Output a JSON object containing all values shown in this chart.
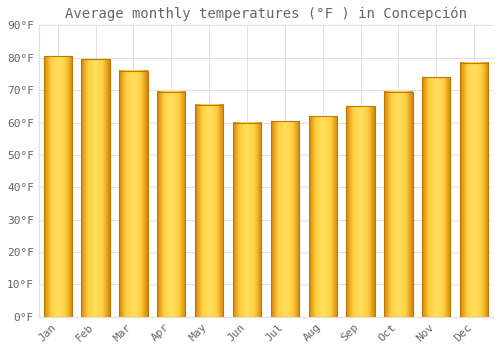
{
  "title": "Average monthly temperatures (°F ) in Concepción",
  "months": [
    "Jan",
    "Feb",
    "Mar",
    "Apr",
    "May",
    "Jun",
    "Jul",
    "Aug",
    "Sep",
    "Oct",
    "Nov",
    "Dec"
  ],
  "values": [
    80.5,
    79.5,
    76,
    69.5,
    65.5,
    60,
    60.5,
    62,
    65,
    69.5,
    74,
    78.5
  ],
  "bar_color_left": "#F5A800",
  "bar_color_center": "#FFD84D",
  "bar_color_right": "#E89000",
  "background_color": "#FFFFFF",
  "plot_bg_color": "#FFFFFF",
  "grid_color": "#E0E0E0",
  "text_color": "#666666",
  "ylim": [
    0,
    90
  ],
  "yticks": [
    0,
    10,
    20,
    30,
    40,
    50,
    60,
    70,
    80,
    90
  ],
  "title_fontsize": 10,
  "tick_fontsize": 8
}
